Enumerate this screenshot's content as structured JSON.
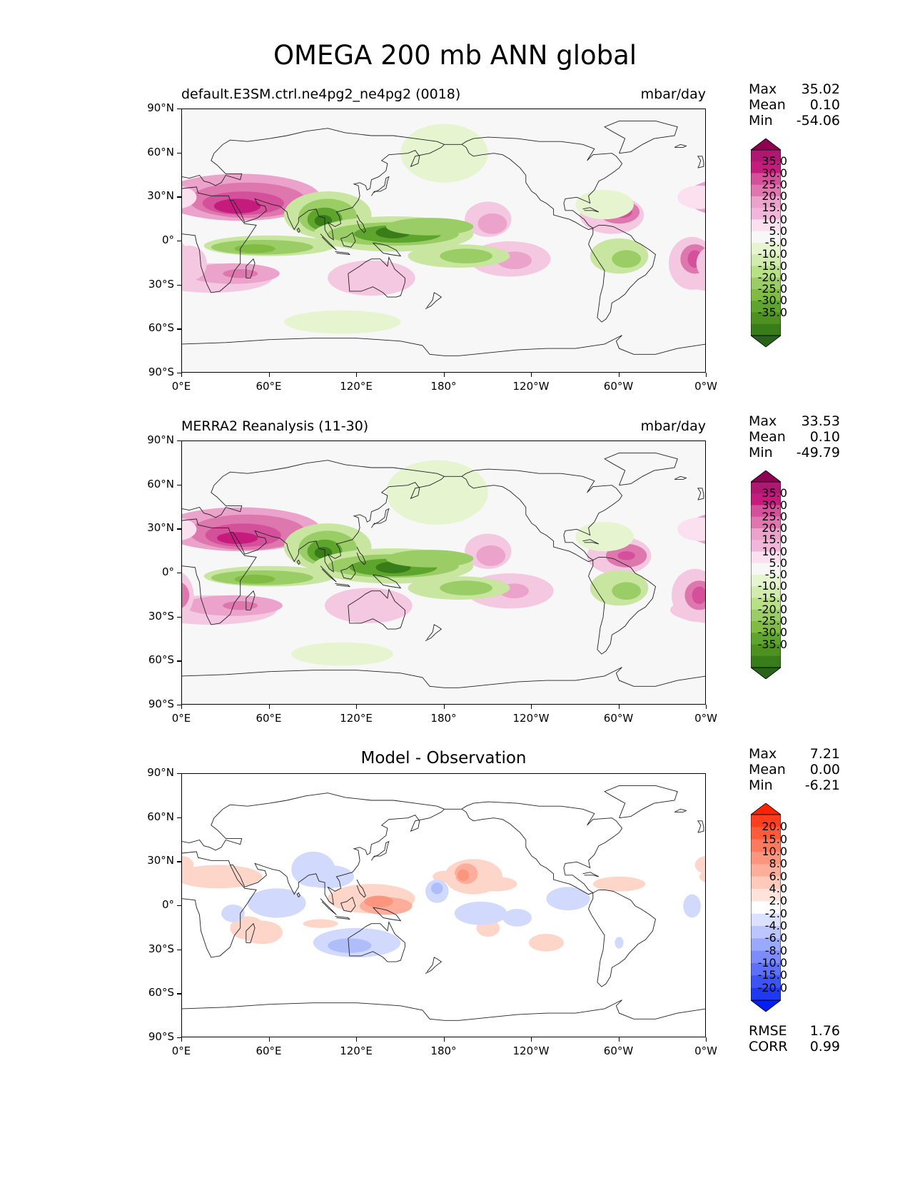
{
  "title": "OMEGA 200 mb ANN global",
  "x_ticks": [
    "0°E",
    "60°E",
    "120°E",
    "180°",
    "120°W",
    "60°W",
    "0°W"
  ],
  "y_ticks": [
    "90°N",
    "60°N",
    "30°N",
    "0°",
    "30°S",
    "60°S",
    "90°S"
  ],
  "panels": [
    {
      "left_title": "default.E3SM.ctrl.ne4pg2_ne4pg2 (0018)",
      "right_title": "mbar/day",
      "center_title": "",
      "stats": [
        {
          "label": "Max",
          "value": "35.02"
        },
        {
          "label": "Mean",
          "value": "0.10"
        },
        {
          "label": "Min",
          "value": "-54.06"
        }
      ],
      "colorbar_labels": [
        "35.0",
        "30.0",
        "25.0",
        "20.0",
        "15.0",
        "10.0",
        "5.0",
        "-5.0",
        "-10.0",
        "-15.0",
        "-20.0",
        "-25.0",
        "-30.0",
        "-35.0"
      ],
      "colorbar_colors": [
        "#8e0152",
        "#ad1870",
        "#c51b7d",
        "#d4509a",
        "#de77ae",
        "#eba3cb",
        "#f1b6da",
        "#fbe0ef",
        "#f7f7f7",
        "#e6f5d0",
        "#d2ecb0",
        "#b8e186",
        "#9bcd67",
        "#7fbc41",
        "#5ea52d",
        "#4d9221",
        "#387d19",
        "#276419"
      ],
      "stats_footer": []
    },
    {
      "left_title": "MERRA2 Reanalysis (11-30)",
      "right_title": "mbar/day",
      "center_title": "",
      "stats": [
        {
          "label": "Max",
          "value": "33.53"
        },
        {
          "label": "Mean",
          "value": "0.10"
        },
        {
          "label": "Min",
          "value": "-49.79"
        }
      ],
      "colorbar_labels": [
        "35.0",
        "30.0",
        "25.0",
        "20.0",
        "15.0",
        "10.0",
        "5.0",
        "-5.0",
        "-10.0",
        "-15.0",
        "-20.0",
        "-25.0",
        "-30.0",
        "-35.0"
      ],
      "colorbar_colors": [
        "#8e0152",
        "#ad1870",
        "#c51b7d",
        "#d4509a",
        "#de77ae",
        "#eba3cb",
        "#f1b6da",
        "#fbe0ef",
        "#f7f7f7",
        "#e6f5d0",
        "#d2ecb0",
        "#b8e186",
        "#9bcd67",
        "#7fbc41",
        "#5ea52d",
        "#4d9221",
        "#387d19",
        "#276419"
      ],
      "stats_footer": []
    },
    {
      "left_title": "",
      "right_title": "",
      "center_title": "Model - Observation",
      "stats": [
        {
          "label": "Max",
          "value": "7.21"
        },
        {
          "label": "Mean",
          "value": "0.00"
        },
        {
          "label": "Min",
          "value": "-6.21"
        }
      ],
      "colorbar_labels": [
        "20.0",
        "15.0",
        "10.0",
        "8.0",
        "6.0",
        "4.0",
        "2.0",
        "-2.0",
        "-4.0",
        "-6.0",
        "-8.0",
        "-10.0",
        "-15.0",
        "-20.0"
      ],
      "colorbar_colors": [
        "#ff2200",
        "#ff3d1f",
        "#fe5a3c",
        "#fd7a5e",
        "#fc957e",
        "#fcae9b",
        "#fdc9bb",
        "#fee3da",
        "#ffffff",
        "#dbe1fe",
        "#bcc6fd",
        "#9aa9fc",
        "#7c8cfa",
        "#5d71f8",
        "#3c53f6",
        "#1f38f4",
        "#0020f2"
      ],
      "stats_footer": [
        {
          "label": "RMSE",
          "value": "1.76"
        },
        {
          "label": "CORR",
          "value": "0.99"
        }
      ]
    }
  ]
}
